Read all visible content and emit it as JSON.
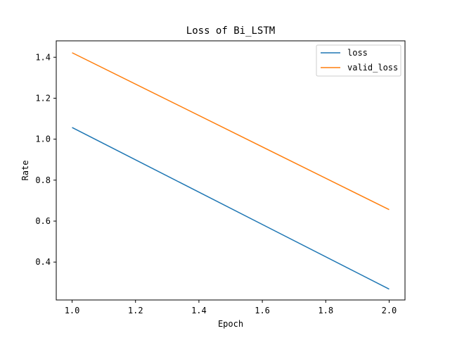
{
  "chart_data": {
    "type": "line",
    "title": "Loss of Bi_LSTM",
    "xlabel": "Epoch",
    "ylabel": "Rate",
    "x": [
      1.0,
      2.0
    ],
    "xlim": [
      0.95,
      2.05
    ],
    "ylim": [
      0.215,
      1.48
    ],
    "xticks": [
      1.0,
      1.2,
      1.4,
      1.6,
      1.8,
      2.0
    ],
    "xtick_labels": [
      "1.0",
      "1.2",
      "1.4",
      "1.6",
      "1.8",
      "2.0"
    ],
    "yticks": [
      0.4,
      0.6,
      0.8,
      1.0,
      1.2,
      1.4
    ],
    "ytick_labels": [
      "0.4",
      "0.6",
      "0.8",
      "1.0",
      "1.2",
      "1.4"
    ],
    "series": [
      {
        "name": "loss",
        "values": [
          1.057,
          0.268
        ],
        "color": "#1f77b4"
      },
      {
        "name": "valid_loss",
        "values": [
          1.422,
          0.656
        ],
        "color": "#ff7f0e"
      }
    ],
    "legend_position": "top-right",
    "grid": false
  }
}
